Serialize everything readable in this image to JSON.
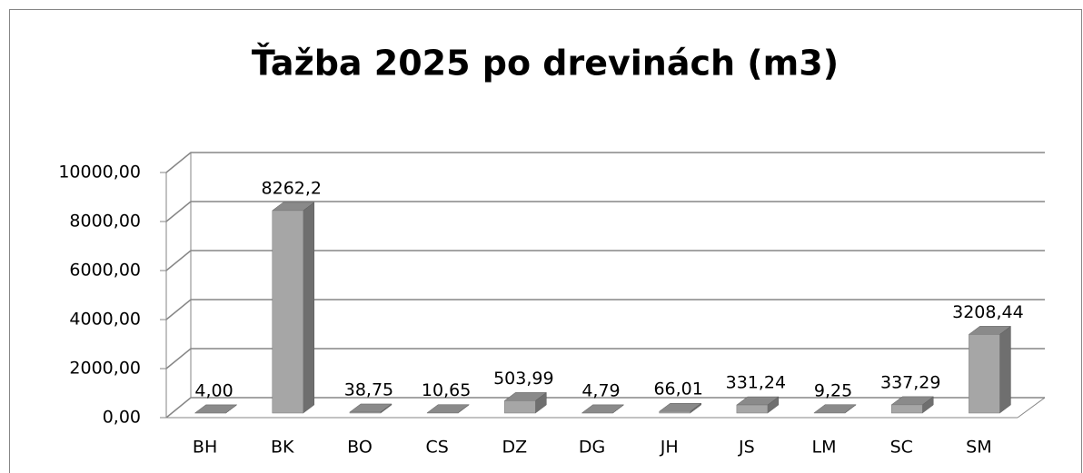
{
  "chart_data": {
    "type": "bar3d",
    "title": "Ťažba 2025 po drevinách (m3)",
    "categories": [
      "BH",
      "BK",
      "BO",
      "CS",
      "DZ",
      "DG",
      "JH",
      "JS",
      "LM",
      "SC",
      "SM"
    ],
    "values": [
      4.0,
      8262.2,
      38.75,
      10.65,
      503.99,
      4.79,
      66.01,
      331.24,
      9.25,
      337.29,
      3208.44
    ],
    "value_labels": [
      "4,00",
      "8262,2",
      "38,75",
      "10,65",
      "503,99",
      "4,79",
      "66,01",
      "331,24",
      "9,25",
      "337,29",
      "3208,44"
    ],
    "color": "#a6a6a6",
    "ylim": [
      0,
      10000
    ],
    "yticks": [
      {
        "value": 0,
        "label": "0,00"
      },
      {
        "value": 2000,
        "label": "2000,00"
      },
      {
        "value": 4000,
        "label": "4000,00"
      },
      {
        "value": 6000,
        "label": "6000,00"
      },
      {
        "value": 8000,
        "label": "8000,00"
      },
      {
        "value": 10000,
        "label": "10000,00"
      }
    ],
    "grid": true
  }
}
